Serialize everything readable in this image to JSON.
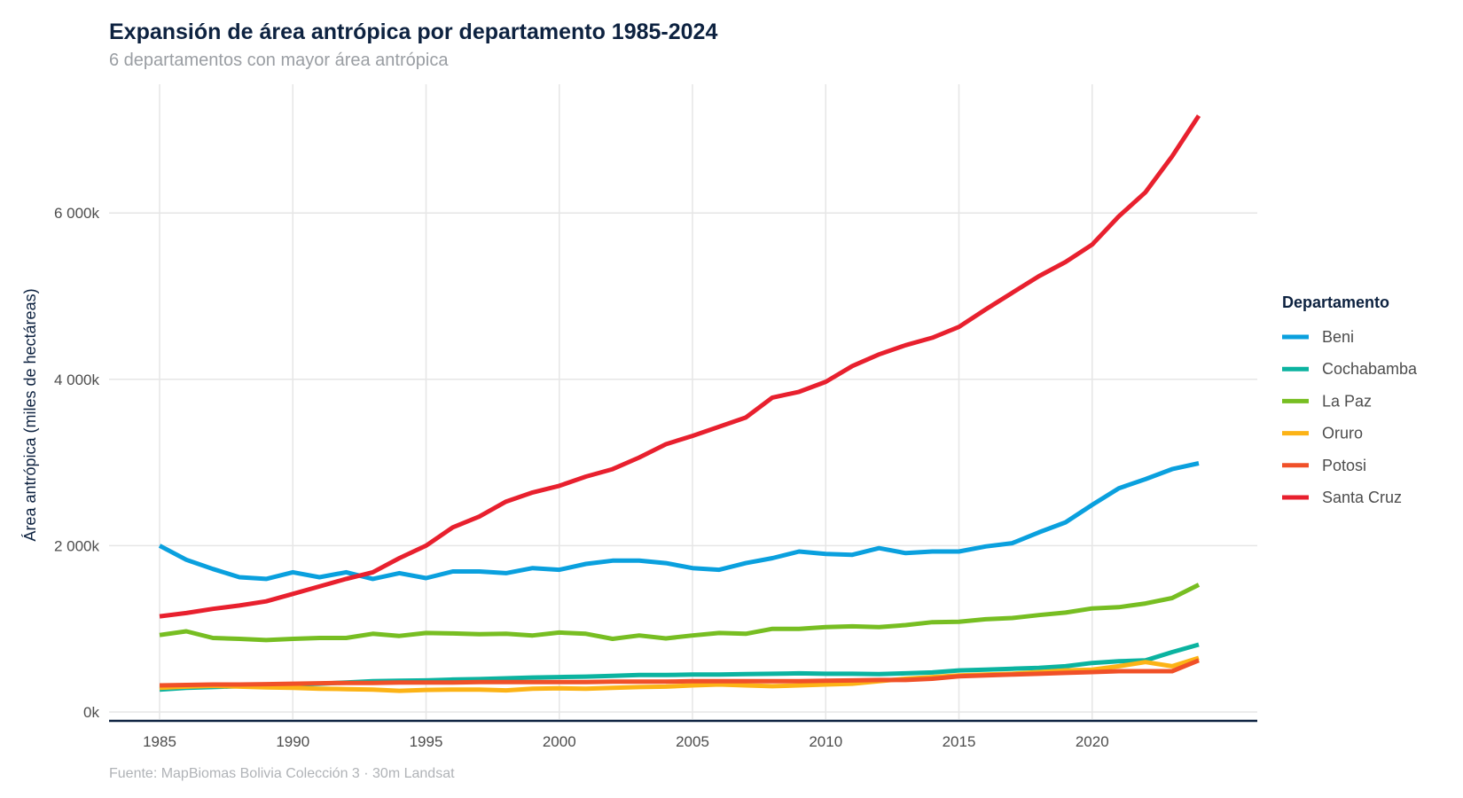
{
  "chart_data": {
    "type": "line",
    "title": "Expansión de área antrópica por departamento 1985-2024",
    "subtitle": "6 departamentos con mayor área antrópica",
    "xlabel": "",
    "ylabel": "Área antrópica (miles de hectáreas)",
    "caption": "Fuente: MapBiomas Bolivia Colección 3 · 30m Landsat",
    "xlim": [
      1985,
      2024
    ],
    "ylim": [
      0,
      7200
    ],
    "x_ticks": [
      1985,
      1990,
      1995,
      2000,
      2005,
      2010,
      2015,
      2020
    ],
    "x_tick_labels": [
      "1985",
      "1990",
      "1995",
      "2000",
      "2005",
      "2010",
      "2015",
      "2020"
    ],
    "y_ticks": [
      0,
      2000,
      4000,
      6000
    ],
    "y_tick_labels": [
      "0k",
      "2 000k",
      "4 000k",
      "6 000k"
    ],
    "grid": true,
    "legend": {
      "title": "Departamento",
      "placement": "right"
    },
    "x": [
      1985,
      1986,
      1987,
      1988,
      1989,
      1990,
      1991,
      1992,
      1993,
      1994,
      1995,
      1996,
      1997,
      1998,
      1999,
      2000,
      2001,
      2002,
      2003,
      2004,
      2005,
      2006,
      2007,
      2008,
      2009,
      2010,
      2011,
      2012,
      2013,
      2014,
      2015,
      2016,
      2017,
      2018,
      2019,
      2020,
      2021,
      2022,
      2023,
      2024
    ],
    "series": [
      {
        "name": "Beni",
        "color": "#0aa0de",
        "values": [
          2000,
          1830,
          1720,
          1620,
          1600,
          1680,
          1620,
          1680,
          1600,
          1670,
          1610,
          1690,
          1690,
          1670,
          1730,
          1710,
          1780,
          1820,
          1820,
          1790,
          1730,
          1710,
          1790,
          1850,
          1930,
          1900,
          1890,
          1970,
          1910,
          1930,
          1930,
          1990,
          2030,
          2160,
          2280,
          2490,
          2690,
          2800,
          2920,
          2990
        ]
      },
      {
        "name": "Cochabamba",
        "color": "#0bb3a0",
        "values": [
          270,
          290,
          300,
          310,
          320,
          330,
          340,
          355,
          370,
          375,
          380,
          390,
          395,
          405,
          415,
          420,
          425,
          435,
          445,
          445,
          450,
          450,
          455,
          460,
          465,
          460,
          460,
          455,
          465,
          475,
          500,
          510,
          520,
          530,
          550,
          590,
          610,
          620,
          720,
          810
        ]
      },
      {
        "name": "La Paz",
        "color": "#77be22",
        "values": [
          925,
          970,
          890,
          880,
          865,
          880,
          890,
          890,
          940,
          915,
          950,
          945,
          935,
          940,
          920,
          955,
          940,
          880,
          920,
          885,
          920,
          950,
          940,
          1000,
          1000,
          1020,
          1030,
          1020,
          1045,
          1080,
          1085,
          1115,
          1130,
          1165,
          1195,
          1245,
          1260,
          1305,
          1370,
          1530
        ]
      },
      {
        "name": "Oruro",
        "color": "#fcb316",
        "values": [
          290,
          305,
          315,
          305,
          295,
          290,
          280,
          275,
          270,
          255,
          265,
          270,
          270,
          260,
          280,
          285,
          280,
          290,
          300,
          305,
          320,
          330,
          320,
          310,
          320,
          330,
          340,
          370,
          400,
          420,
          440,
          450,
          460,
          480,
          500,
          510,
          550,
          600,
          550,
          650
        ]
      },
      {
        "name": "Potosi",
        "color": "#f05028",
        "values": [
          320,
          325,
          330,
          330,
          335,
          340,
          345,
          350,
          350,
          355,
          355,
          355,
          360,
          360,
          360,
          360,
          360,
          365,
          365,
          365,
          370,
          370,
          370,
          370,
          370,
          375,
          380,
          385,
          385,
          400,
          430,
          440,
          450,
          460,
          470,
          480,
          490,
          490,
          490,
          620
        ]
      },
      {
        "name": "Santa Cruz",
        "color": "#e8202e",
        "values": [
          1150,
          1190,
          1240,
          1280,
          1330,
          1420,
          1510,
          1600,
          1680,
          1850,
          2000,
          2220,
          2350,
          2530,
          2640,
          2720,
          2830,
          2920,
          3060,
          3220,
          3320,
          3430,
          3540,
          3780,
          3850,
          3970,
          4160,
          4300,
          4410,
          4500,
          4630,
          4840,
          5040,
          5240,
          5410,
          5620,
          5960,
          6250,
          6680,
          7170
        ]
      }
    ]
  }
}
